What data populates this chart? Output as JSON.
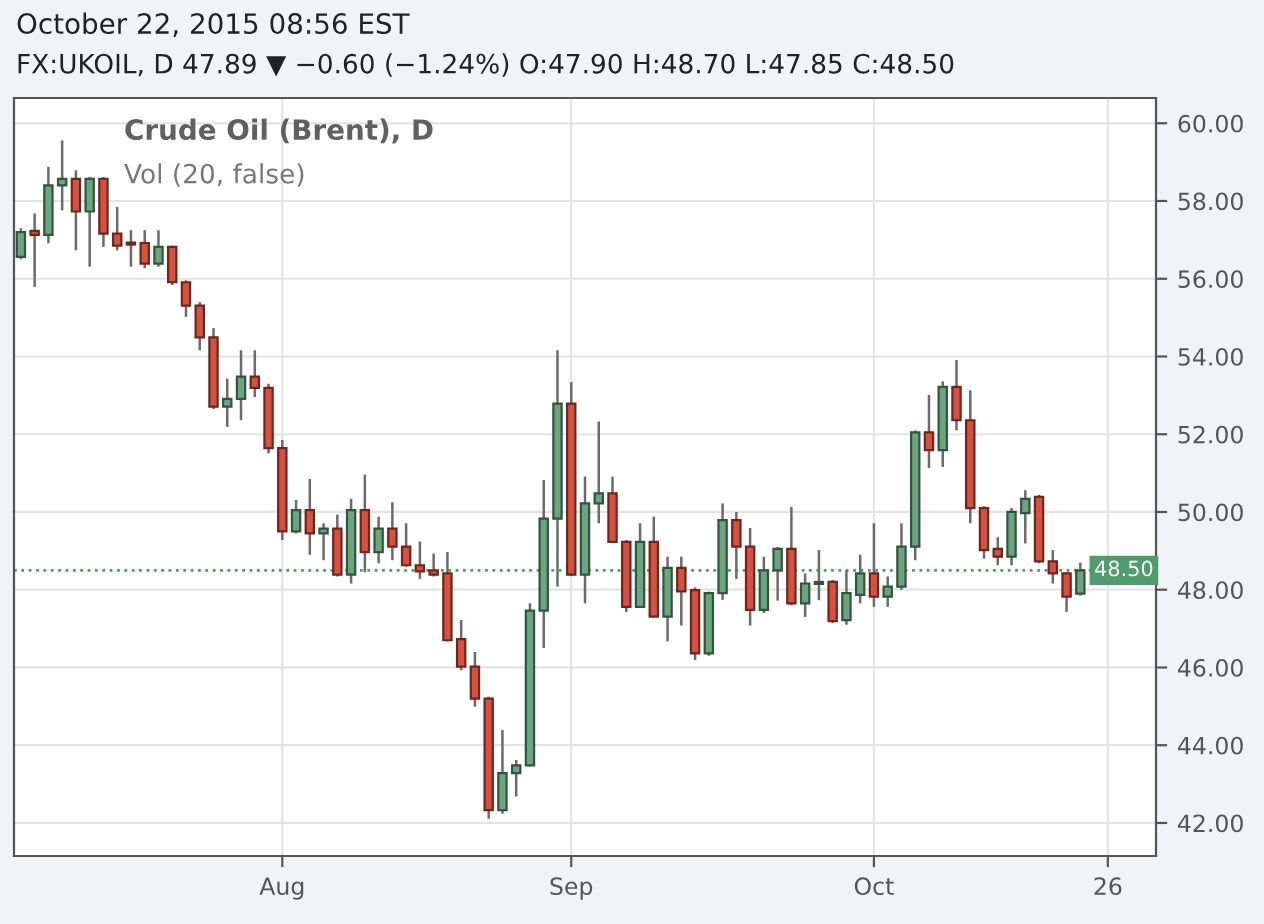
{
  "chart_data": {
    "type": "candlestick",
    "title": "Crude Oil (Brent), D",
    "annotations": [
      "October 22, 2015 08:56 EST",
      "FX:UKOIL, D 47.89 ▼ −0.60 (−1.24%) O:47.90 H:48.70 L:47.85 C:48.50",
      "Vol (20, false)"
    ],
    "categories": [
      null,
      null,
      null,
      null,
      null,
      null,
      null,
      null,
      null,
      null,
      null,
      null,
      null,
      null,
      null,
      null,
      null,
      null,
      null,
      "Aug",
      null,
      null,
      null,
      null,
      null,
      null,
      null,
      null,
      null,
      null,
      null,
      null,
      null,
      null,
      null,
      null,
      null,
      null,
      null,
      null,
      "Sep",
      null,
      null,
      null,
      null,
      null,
      null,
      null,
      null,
      null,
      null,
      null,
      null,
      null,
      null,
      null,
      null,
      null,
      null,
      null,
      null,
      null,
      "Oct",
      null,
      null,
      null,
      null,
      null,
      null,
      null,
      null,
      null,
      null,
      null,
      null,
      null,
      null,
      null,
      null,
      "26",
      null,
      null,
      null
    ],
    "ohlc": [
      [
        56.56,
        57.3,
        56.5,
        57.2
      ],
      [
        57.23,
        57.68,
        55.79,
        57.13
      ],
      [
        57.13,
        58.88,
        56.91,
        58.4
      ],
      [
        58.4,
        59.56,
        57.76,
        58.57
      ],
      [
        58.57,
        58.79,
        56.73,
        57.73
      ],
      [
        57.73,
        58.62,
        56.31,
        58.57
      ],
      [
        58.57,
        58.62,
        56.82,
        57.16
      ],
      [
        57.16,
        57.85,
        56.73,
        56.85
      ],
      [
        56.93,
        57.25,
        56.31,
        56.88
      ],
      [
        56.92,
        57.25,
        56.27,
        56.39
      ],
      [
        56.39,
        57.25,
        56.31,
        56.82
      ],
      [
        56.82,
        56.85,
        55.84,
        55.91
      ],
      [
        55.91,
        55.96,
        55.02,
        55.31
      ],
      [
        55.31,
        55.4,
        54.16,
        54.49
      ],
      [
        54.49,
        54.73,
        52.65,
        52.71
      ],
      [
        52.71,
        53.43,
        52.19,
        52.91
      ],
      [
        52.91,
        54.16,
        52.36,
        53.48
      ],
      [
        53.48,
        54.16,
        52.96,
        53.19
      ],
      [
        53.19,
        53.3,
        51.51,
        51.64
      ],
      [
        51.64,
        51.85,
        49.28,
        49.5
      ],
      [
        49.5,
        50.31,
        49.45,
        50.05
      ],
      [
        50.05,
        50.85,
        48.9,
        49.45
      ],
      [
        49.45,
        49.71,
        48.76,
        49.57
      ],
      [
        49.57,
        49.93,
        48.34,
        48.39
      ],
      [
        48.39,
        50.34,
        48.16,
        50.05
      ],
      [
        50.05,
        50.96,
        48.45,
        48.97
      ],
      [
        48.97,
        49.88,
        48.68,
        49.57
      ],
      [
        49.57,
        50.25,
        48.76,
        49.11
      ],
      [
        49.11,
        49.71,
        48.59,
        48.63
      ],
      [
        48.63,
        49.24,
        48.28,
        48.47
      ],
      [
        48.5,
        48.93,
        48.34,
        48.39
      ],
      [
        48.42,
        48.97,
        46.67,
        46.7
      ],
      [
        46.73,
        47.22,
        45.93,
        46.02
      ],
      [
        46.02,
        46.4,
        44.99,
        45.2
      ],
      [
        45.2,
        45.25,
        42.11,
        42.33
      ],
      [
        42.33,
        44.39,
        42.24,
        43.28
      ],
      [
        43.28,
        43.62,
        42.68,
        43.48
      ],
      [
        43.48,
        47.65,
        43.45,
        47.46
      ],
      [
        47.46,
        50.82,
        46.5,
        49.83
      ],
      [
        49.83,
        54.16,
        48.08,
        52.79
      ],
      [
        52.79,
        53.34,
        48.35,
        48.39
      ],
      [
        48.39,
        50.91,
        47.65,
        50.22
      ],
      [
        50.22,
        52.33,
        49.71,
        50.48
      ],
      [
        50.48,
        50.91,
        49.2,
        49.23
      ],
      [
        49.23,
        49.28,
        47.43,
        47.56
      ],
      [
        47.56,
        49.71,
        47.53,
        49.23
      ],
      [
        49.23,
        49.88,
        47.3,
        47.31
      ],
      [
        47.31,
        48.85,
        46.67,
        48.56
      ],
      [
        48.56,
        48.85,
        47.08,
        47.96
      ],
      [
        47.99,
        48.06,
        46.19,
        46.36
      ],
      [
        46.36,
        47.95,
        46.3,
        47.91
      ],
      [
        47.91,
        50.22,
        47.74,
        49.79
      ],
      [
        49.79,
        50.0,
        48.28,
        49.11
      ],
      [
        49.11,
        49.59,
        47.08,
        47.48
      ],
      [
        47.48,
        48.85,
        47.4,
        48.5
      ],
      [
        48.5,
        49.1,
        47.72,
        49.05
      ],
      [
        49.05,
        50.13,
        47.6,
        47.65
      ],
      [
        47.65,
        48.42,
        47.3,
        48.16
      ],
      [
        48.15,
        49.02,
        47.73,
        48.2
      ],
      [
        48.2,
        48.25,
        47.14,
        47.19
      ],
      [
        47.22,
        48.5,
        47.1,
        47.91
      ],
      [
        47.87,
        48.9,
        47.65,
        48.42
      ],
      [
        48.42,
        49.71,
        47.56,
        47.82
      ],
      [
        47.82,
        48.34,
        47.56,
        48.08
      ],
      [
        48.08,
        49.71,
        48.0,
        49.11
      ],
      [
        49.11,
        52.1,
        48.76,
        52.05
      ],
      [
        52.05,
        53.01,
        51.13,
        51.59
      ],
      [
        51.59,
        53.36,
        51.16,
        53.22
      ],
      [
        53.22,
        53.91,
        52.1,
        52.36
      ],
      [
        52.36,
        53.13,
        49.71,
        50.1
      ],
      [
        50.1,
        50.15,
        48.8,
        49.02
      ],
      [
        49.05,
        49.35,
        48.63,
        48.85
      ],
      [
        48.85,
        50.1,
        48.63,
        50.0
      ],
      [
        49.97,
        50.56,
        49.19,
        50.34
      ],
      [
        50.39,
        50.44,
        48.68,
        48.73
      ],
      [
        48.73,
        49.02,
        48.16,
        48.42
      ],
      [
        48.42,
        48.45,
        47.43,
        47.82
      ],
      [
        47.9,
        48.7,
        47.85,
        48.5
      ],
      null,
      null,
      null,
      null,
      null
    ],
    "colors": [
      "#6aa77f",
      "#d8513e",
      "#6aa77f",
      "#6aa77f",
      "#d8513e",
      "#6aa77f",
      "#d8513e",
      "#d8513e",
      "#d8513e",
      "#d8513e",
      "#6aa77f",
      "#d8513e",
      "#d8513e",
      "#d8513e",
      "#d8513e",
      "#6aa77f",
      "#6aa77f",
      "#d8513e",
      "#d8513e",
      "#d8513e",
      "#6aa77f",
      "#d8513e",
      "#6aa77f",
      "#d8513e",
      "#6aa77f",
      "#d8513e",
      "#6aa77f",
      "#d8513e",
      "#d8513e",
      "#d8513e",
      "#d8513e",
      "#d8513e",
      "#d8513e",
      "#d8513e",
      "#d8513e",
      "#6aa77f",
      "#6aa77f",
      "#6aa77f",
      "#6aa77f",
      "#6aa77f",
      "#d8513e",
      "#6aa77f",
      "#6aa77f",
      "#d8513e",
      "#d8513e",
      "#6aa77f",
      "#d8513e",
      "#6aa77f",
      "#d8513e",
      "#d8513e",
      "#6aa77f",
      "#6aa77f",
      "#d8513e",
      "#d8513e",
      "#6aa77f",
      "#6aa77f",
      "#d8513e",
      "#6aa77f",
      "#6aa77f",
      "#d8513e",
      "#6aa77f",
      "#6aa77f",
      "#d8513e",
      "#6aa77f",
      "#6aa77f",
      "#6aa77f",
      "#d8513e",
      "#6aa77f",
      "#d8513e",
      "#d8513e",
      "#d8513e",
      "#d8513e",
      "#6aa77f",
      "#6aa77f",
      "#d8513e",
      "#d8513e",
      "#d8513e",
      "#6aa77f",
      null,
      null,
      null,
      null,
      null
    ],
    "ylim": [
      41.15,
      60.65
    ],
    "yticks": [
      {
        "value": 42,
        "label": "42.00"
      },
      {
        "value": 44,
        "label": "44.00"
      },
      {
        "value": 46,
        "label": "46.00"
      },
      {
        "value": 48,
        "label": "48.00"
      },
      {
        "value": 50,
        "label": "50.00"
      },
      {
        "value": 52,
        "label": "52.00"
      },
      {
        "value": 54,
        "label": "54.00"
      },
      {
        "value": 56,
        "label": "56.00"
      },
      {
        "value": 58,
        "label": "58.00"
      },
      {
        "value": 60,
        "label": "60.00"
      }
    ],
    "grid": true,
    "ref_lines": [
      {
        "axis": "y",
        "value": 48.5,
        "label": "48.50",
        "color": "#4f9c6c",
        "line_style": "dotted"
      }
    ]
  }
}
